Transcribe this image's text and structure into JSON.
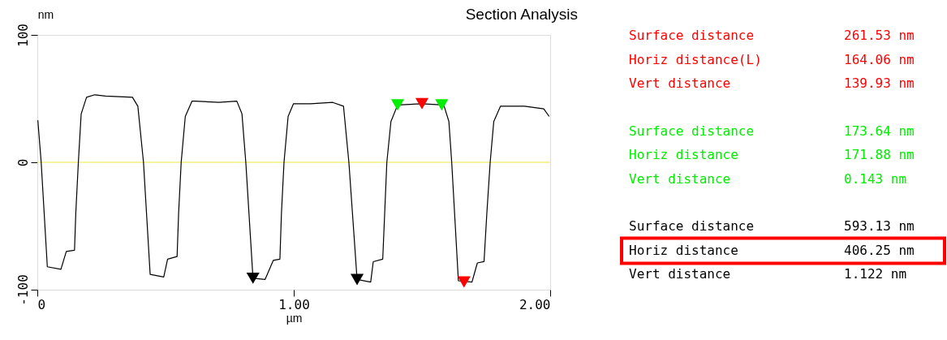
{
  "chart_data": {
    "type": "line",
    "title": "Section Analysis",
    "xlabel": "µm",
    "ylabel": "nm",
    "xlim": [
      0,
      2
    ],
    "xticks": [
      0,
      {
        "value": 1,
        "label": "1.00"
      },
      {
        "value": 2,
        "label": "2.00"
      }
    ],
    "ylim": [
      -100,
      100
    ],
    "yticks": [
      100,
      0,
      -100
    ],
    "marker": "none",
    "line_style": "solid",
    "ref_lines": [
      {
        "axis": "y",
        "value": 0,
        "color": "#f5f07a"
      }
    ],
    "series": [
      {
        "color": "#000000",
        "x": [
          0.002,
          0.015,
          0.039,
          0.092,
          0.113,
          0.145,
          0.15,
          0.16,
          0.171,
          0.192,
          0.224,
          0.266,
          0.371,
          0.392,
          0.414,
          0.44,
          0.493,
          0.508,
          0.545,
          0.551,
          0.561,
          0.577,
          0.603,
          0.614,
          0.709,
          0.778,
          0.798,
          0.813,
          0.841,
          0.888,
          0.92,
          0.946,
          0.952,
          0.962,
          0.978,
          0.999,
          1.066,
          1.152,
          1.194,
          1.215,
          1.247,
          1.3,
          1.31,
          1.347,
          1.363,
          1.379,
          1.405,
          1.5,
          1.585,
          1.605,
          1.616,
          1.642,
          1.695,
          1.716,
          1.742,
          1.753,
          1.766,
          1.78,
          1.806,
          1.9,
          1.975,
          1.996
        ],
        "values": [
          33,
          0,
          -82,
          -84,
          -70,
          -69,
          -40,
          0,
          38,
          51,
          53,
          52,
          51,
          44,
          0,
          -88,
          -90,
          -76,
          -74,
          -40,
          0,
          36,
          48,
          48,
          47,
          48,
          38,
          0,
          -91,
          -92,
          -77,
          -76,
          -40,
          0,
          36,
          46,
          46,
          47,
          44,
          0,
          -92,
          -94,
          -78,
          -76,
          0,
          32,
          45,
          46,
          45,
          32,
          0,
          -93,
          -94,
          -79,
          -78,
          -40,
          0,
          32,
          44,
          44,
          42,
          36
        ]
      },
      {
        "type": "scatter",
        "marker": "triangle",
        "color": "#ff0000",
        "x": [
          1.5,
          1.664
        ],
        "values": [
          46,
          -94
        ]
      },
      {
        "type": "scatter",
        "marker": "triangle",
        "color": "#00ee00",
        "x": [
          1.405,
          1.577
        ],
        "values": [
          45,
          45
        ]
      },
      {
        "type": "scatter",
        "marker": "triangle",
        "color": "#000000",
        "x": [
          0.841,
          1.247
        ],
        "values": [
          -91,
          -92
        ]
      }
    ],
    "annotations": [
      "Surface distance",
      "261.53 nm",
      "Horiz distance(L)",
      "164.06 nm",
      "Vert distance",
      "139.93 nm",
      "Surface distance",
      "173.64 nm",
      "Horiz distance",
      "171.88 nm",
      "Vert distance",
      "0.143 nm",
      "Surface distance",
      "593.13 nm",
      "Horiz distance",
      "406.25 nm",
      "Vert distance",
      "1.122 nm"
    ]
  }
}
